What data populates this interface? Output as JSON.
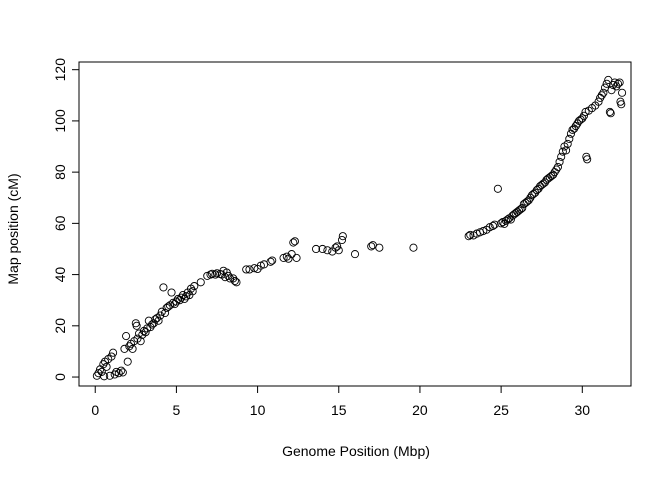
{
  "chart_data": {
    "type": "scatter",
    "title": "",
    "xlabel": "Genome Position (Mbp)",
    "ylabel": "Map position (cM)",
    "xlim": [
      -1.0,
      33.0
    ],
    "ylim": [
      -3.5,
      123.0
    ],
    "xticks": [
      0,
      5,
      10,
      15,
      20,
      25,
      30
    ],
    "yticks": [
      0,
      20,
      40,
      60,
      80,
      100,
      120
    ],
    "marker": "open-circle",
    "color": "#000000",
    "grid": false,
    "points": [
      [
        0.1,
        0.5
      ],
      [
        0.2,
        1.5
      ],
      [
        0.3,
        3.0
      ],
      [
        0.4,
        2.0
      ],
      [
        0.5,
        5.0
      ],
      [
        0.55,
        0.3
      ],
      [
        0.6,
        6.0
      ],
      [
        0.7,
        4.0
      ],
      [
        0.8,
        7.0
      ],
      [
        0.9,
        0.5
      ],
      [
        1.0,
        8.0
      ],
      [
        1.1,
        9.5
      ],
      [
        1.2,
        1.0
      ],
      [
        1.3,
        2.0
      ],
      [
        1.45,
        1.5
      ],
      [
        1.6,
        2.5
      ],
      [
        1.7,
        1.8
      ],
      [
        1.8,
        11.0
      ],
      [
        1.9,
        16.0
      ],
      [
        2.0,
        6.0
      ],
      [
        2.1,
        12.0
      ],
      [
        2.2,
        13.0
      ],
      [
        2.3,
        11.0
      ],
      [
        2.4,
        14.0
      ],
      [
        2.5,
        21.0
      ],
      [
        2.55,
        20.0
      ],
      [
        2.6,
        15.0
      ],
      [
        2.7,
        17.0
      ],
      [
        2.8,
        14.0
      ],
      [
        2.9,
        16.5
      ],
      [
        3.0,
        18.0
      ],
      [
        3.1,
        17.5
      ],
      [
        3.2,
        19.0
      ],
      [
        3.3,
        22.0
      ],
      [
        3.4,
        19.5
      ],
      [
        3.5,
        20.5
      ],
      [
        3.6,
        21.0
      ],
      [
        3.7,
        22.5
      ],
      [
        3.8,
        23.0
      ],
      [
        3.9,
        22.0
      ],
      [
        4.0,
        24.0
      ],
      [
        4.1,
        25.5
      ],
      [
        4.2,
        35.0
      ],
      [
        4.3,
        25.0
      ],
      [
        4.4,
        27.0
      ],
      [
        4.5,
        27.5
      ],
      [
        4.6,
        28.0
      ],
      [
        4.7,
        33.0
      ],
      [
        4.8,
        29.0
      ],
      [
        4.9,
        28.5
      ],
      [
        5.0,
        29.5
      ],
      [
        5.1,
        30.5
      ],
      [
        5.2,
        30.0
      ],
      [
        5.3,
        31.0
      ],
      [
        5.4,
        32.0
      ],
      [
        5.5,
        30.5
      ],
      [
        5.6,
        31.5
      ],
      [
        5.7,
        33.0
      ],
      [
        5.8,
        32.0
      ],
      [
        5.9,
        34.5
      ],
      [
        6.0,
        33.5
      ],
      [
        6.1,
        35.5
      ],
      [
        6.5,
        37.0
      ],
      [
        6.9,
        39.5
      ],
      [
        7.1,
        40.0
      ],
      [
        7.2,
        40.3
      ],
      [
        7.4,
        40.0
      ],
      [
        7.5,
        40.5
      ],
      [
        7.7,
        40.2
      ],
      [
        7.8,
        40.0
      ],
      [
        7.9,
        41.5
      ],
      [
        8.0,
        39.0
      ],
      [
        8.1,
        40.8
      ],
      [
        8.2,
        39.5
      ],
      [
        8.3,
        38.5
      ],
      [
        8.5,
        38.5
      ],
      [
        8.6,
        37.5
      ],
      [
        8.7,
        37.0
      ],
      [
        9.3,
        42.0
      ],
      [
        9.5,
        42.0
      ],
      [
        9.8,
        42.5
      ],
      [
        10.0,
        42.2
      ],
      [
        10.2,
        43.5
      ],
      [
        10.4,
        44.0
      ],
      [
        10.8,
        45.0
      ],
      [
        10.9,
        45.5
      ],
      [
        11.6,
        46.5
      ],
      [
        11.8,
        47.0
      ],
      [
        11.9,
        46.2
      ],
      [
        12.1,
        48.0
      ],
      [
        12.2,
        52.5
      ],
      [
        12.3,
        53.0
      ],
      [
        12.4,
        46.5
      ],
      [
        13.6,
        50.0
      ],
      [
        14.0,
        50.0
      ],
      [
        14.3,
        49.5
      ],
      [
        14.6,
        49.0
      ],
      [
        14.8,
        50.5
      ],
      [
        14.9,
        51.0
      ],
      [
        15.0,
        49.5
      ],
      [
        15.2,
        53.5
      ],
      [
        15.25,
        55.0
      ],
      [
        16.0,
        48.0
      ],
      [
        17.0,
        51.0
      ],
      [
        17.1,
        51.5
      ],
      [
        17.5,
        50.5
      ],
      [
        19.6,
        50.5
      ],
      [
        23.0,
        55.0
      ],
      [
        23.1,
        55.5
      ],
      [
        23.3,
        55.3
      ],
      [
        23.5,
        56.0
      ],
      [
        23.7,
        56.5
      ],
      [
        23.9,
        57.0
      ],
      [
        24.1,
        57.5
      ],
      [
        24.3,
        58.5
      ],
      [
        24.5,
        59.0
      ],
      [
        24.6,
        59.5
      ],
      [
        24.8,
        73.5
      ],
      [
        25.0,
        60.0
      ],
      [
        25.1,
        60.5
      ],
      [
        25.2,
        59.8
      ],
      [
        25.3,
        61.0
      ],
      [
        25.4,
        61.5
      ],
      [
        25.5,
        62.0
      ],
      [
        25.6,
        61.5
      ],
      [
        25.7,
        63.0
      ],
      [
        25.8,
        63.5
      ],
      [
        25.9,
        64.0
      ],
      [
        26.0,
        64.5
      ],
      [
        26.1,
        65.0
      ],
      [
        26.2,
        65.5
      ],
      [
        26.3,
        66.0
      ],
      [
        26.4,
        67.5
      ],
      [
        26.5,
        68.0
      ],
      [
        26.6,
        68.5
      ],
      [
        26.7,
        69.0
      ],
      [
        26.8,
        70.0
      ],
      [
        26.9,
        71.0
      ],
      [
        27.0,
        71.5
      ],
      [
        27.1,
        72.0
      ],
      [
        27.2,
        73.0
      ],
      [
        27.3,
        73.5
      ],
      [
        27.4,
        74.5
      ],
      [
        27.5,
        75.0
      ],
      [
        27.6,
        75.5
      ],
      [
        27.7,
        76.0
      ],
      [
        27.8,
        77.0
      ],
      [
        27.9,
        77.5
      ],
      [
        28.0,
        78.0
      ],
      [
        28.1,
        78.5
      ],
      [
        28.2,
        79.0
      ],
      [
        28.3,
        80.0
      ],
      [
        28.4,
        81.0
      ],
      [
        28.5,
        82.0
      ],
      [
        28.6,
        84.0
      ],
      [
        28.7,
        86.0
      ],
      [
        28.8,
        88.0
      ],
      [
        28.9,
        90.0
      ],
      [
        29.0,
        88.5
      ],
      [
        29.1,
        91.0
      ],
      [
        29.2,
        93.0
      ],
      [
        29.3,
        95.0
      ],
      [
        29.4,
        96.5
      ],
      [
        29.5,
        97.0
      ],
      [
        29.6,
        98.0
      ],
      [
        29.7,
        99.0
      ],
      [
        29.8,
        100.0
      ],
      [
        29.9,
        100.5
      ],
      [
        30.0,
        101.0
      ],
      [
        30.1,
        102.0
      ],
      [
        30.2,
        103.5
      ],
      [
        30.25,
        86.0
      ],
      [
        30.3,
        85.0
      ],
      [
        30.4,
        104.0
      ],
      [
        30.6,
        105.0
      ],
      [
        30.8,
        106.0
      ],
      [
        31.0,
        107.5
      ],
      [
        31.1,
        109.0
      ],
      [
        31.2,
        110.0
      ],
      [
        31.3,
        111.0
      ],
      [
        31.4,
        113.0
      ],
      [
        31.5,
        114.5
      ],
      [
        31.6,
        116.0
      ],
      [
        31.7,
        103.5
      ],
      [
        31.75,
        103.0
      ],
      [
        31.8,
        112.0
      ],
      [
        31.9,
        114.0
      ],
      [
        32.0,
        115.0
      ],
      [
        32.1,
        113.5
      ],
      [
        32.2,
        114.5
      ],
      [
        32.3,
        115.0
      ],
      [
        32.35,
        107.5
      ],
      [
        32.4,
        106.5
      ],
      [
        32.45,
        111.0
      ]
    ]
  }
}
